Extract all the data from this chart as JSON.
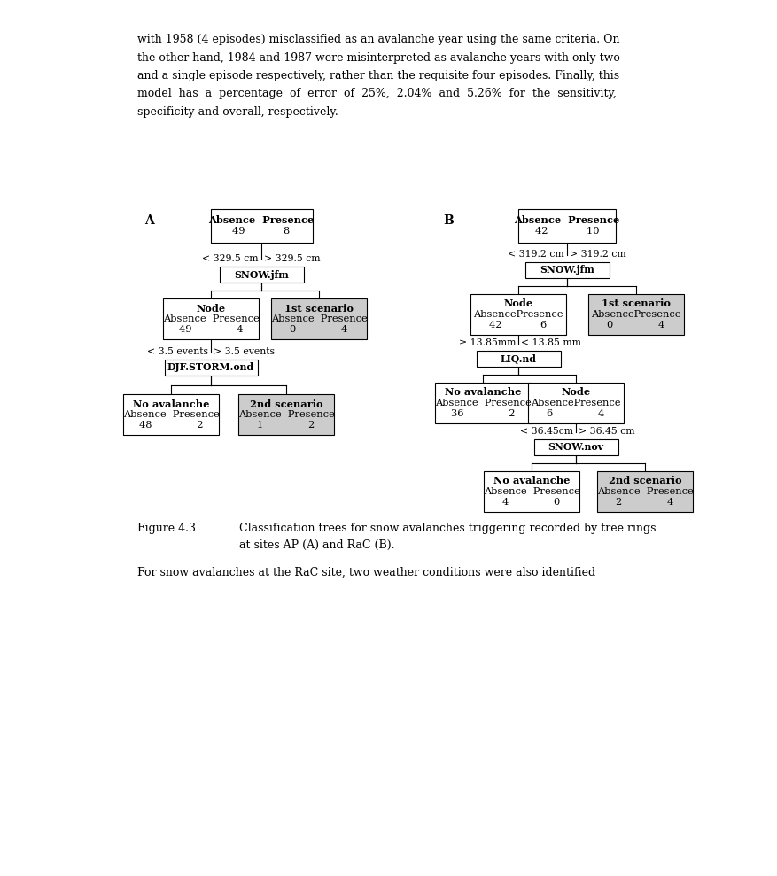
{
  "page_bg": "#ffffff",
  "box_bg_white": "#ffffff",
  "box_bg_gray": "#cccccc",
  "box_border": "#000000",
  "text_color": "#000000",
  "top_text_lines": [
    "with 1958 (4 episodes) misclassified as an avalanche year using the same criteria. On",
    "the other hand, 1984 and 1987 were misinterpreted as avalanche years with only two",
    "and a single episode respectively, rather than the requisite four episodes. Finally, this",
    "model  has  a  percentage  of  error  of  25%,  2.04%  and  5.26%  for  the  sensitivity,",
    "specificity and overall, respectively."
  ],
  "caption_label": "Figure 4.3",
  "caption_text": "Classification trees for snow avalanches triggering recorded by tree rings\nat sites AP (A) and RaC (B).",
  "bottom_text": "For snow avalanches at the RaC site, two weather conditions were also identified",
  "tree_A": {
    "label": "A",
    "root": {
      "lines": [
        "Absence  Presence",
        "49            8"
      ],
      "gray": false
    },
    "split1": {
      "lines": [
        "SNOW.jfm"
      ],
      "left_label": "< 329.5 cm",
      "right_label": "> 329.5 cm"
    },
    "left1": {
      "lines": [
        "Node",
        "Absence  Presence",
        "49              4"
      ],
      "gray": false
    },
    "right1": {
      "lines": [
        "1st scenario",
        "Absence  Presence",
        "0              4"
      ],
      "gray": true
    },
    "split2": {
      "lines": [
        "DJF.STORM.ond"
      ],
      "left_label": "< 3.5 events",
      "right_label": "> 3.5 events"
    },
    "left2": {
      "lines": [
        "No avalanche",
        "Absence  Presence",
        "48              2"
      ],
      "gray": false
    },
    "right2": {
      "lines": [
        "2nd scenario",
        "Absence  Presence",
        "1              2"
      ],
      "gray": true
    }
  },
  "tree_B": {
    "label": "B",
    "root": {
      "lines": [
        "Absence  Presence",
        "42            10"
      ],
      "gray": false
    },
    "split1": {
      "lines": [
        "SNOW.jfm"
      ],
      "left_label": "< 319.2 cm",
      "right_label": "> 319.2 cm"
    },
    "left1": {
      "lines": [
        "Node",
        "AbsencePresence",
        "42            6"
      ],
      "gray": false
    },
    "right1": {
      "lines": [
        "1st scenario",
        "AbsencePresence",
        "0              4"
      ],
      "gray": true
    },
    "split2": {
      "lines": [
        "LIQ.nd"
      ],
      "left_label": "≥ 13.85mm",
      "right_label": "< 13.85 mm"
    },
    "left2": {
      "lines": [
        "No avalanche",
        "Absence  Presence",
        "36              2"
      ],
      "gray": false
    },
    "right2_node": {
      "lines": [
        "Node",
        "AbsencePresence",
        "6              4"
      ],
      "gray": false
    },
    "split3": {
      "lines": [
        "SNOW.nov"
      ],
      "left_label": "< 36.45cm",
      "right_label": "> 36.45 cm"
    },
    "left3": {
      "lines": [
        "No avalanche",
        "Absence  Presence",
        "4              0"
      ],
      "gray": false
    },
    "right3": {
      "lines": [
        "2nd scenario",
        "Absence  Presence",
        "2              4"
      ],
      "gray": true
    }
  }
}
